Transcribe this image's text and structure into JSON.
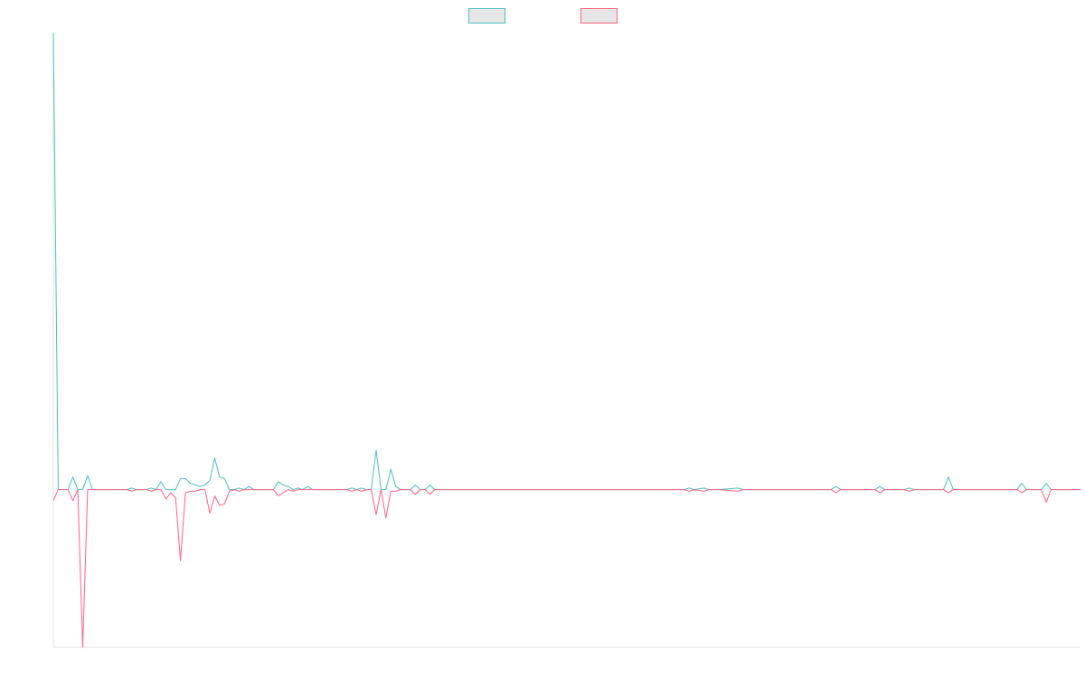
{
  "chart_data": {
    "type": "line",
    "title": "",
    "xlabel": "",
    "ylabel": "",
    "grid": false,
    "legend": "top-center",
    "ylim": [
      -100,
      290
    ],
    "series": [
      {
        "color": "#4bc0c0",
        "fill": "#e6e6e6",
        "points": [
          [
            0,
            290
          ],
          [
            1,
            0
          ],
          [
            2,
            0
          ],
          [
            3,
            0
          ],
          [
            4,
            8
          ],
          [
            5,
            0
          ],
          [
            6,
            0
          ],
          [
            7,
            9
          ],
          [
            8,
            0
          ],
          [
            15,
            0
          ],
          [
            16,
            1
          ],
          [
            17,
            0
          ],
          [
            19,
            0
          ],
          [
            20,
            1
          ],
          [
            21,
            0
          ],
          [
            22,
            5
          ],
          [
            23,
            0
          ],
          [
            25,
            0
          ],
          [
            26,
            7
          ],
          [
            27,
            7
          ],
          [
            28,
            4
          ],
          [
            29,
            3
          ],
          [
            30,
            2
          ],
          [
            31,
            3
          ],
          [
            32,
            6
          ],
          [
            33,
            20
          ],
          [
            34,
            8
          ],
          [
            35,
            7
          ],
          [
            36,
            0
          ],
          [
            37,
            0
          ],
          [
            38,
            1
          ],
          [
            39,
            0
          ],
          [
            40,
            2
          ],
          [
            41,
            0
          ],
          [
            45,
            0
          ],
          [
            46,
            5
          ],
          [
            47,
            3
          ],
          [
            48,
            2
          ],
          [
            49,
            0
          ],
          [
            50,
            1
          ],
          [
            51,
            0
          ],
          [
            52,
            2
          ],
          [
            53,
            0
          ],
          [
            60,
            0
          ],
          [
            61,
            1
          ],
          [
            62,
            0
          ],
          [
            63,
            1
          ],
          [
            64,
            0
          ],
          [
            65,
            0
          ],
          [
            66,
            25
          ],
          [
            67,
            0
          ],
          [
            68,
            0
          ],
          [
            69,
            13
          ],
          [
            70,
            2
          ],
          [
            71,
            0
          ],
          [
            73,
            0
          ],
          [
            74,
            3
          ],
          [
            75,
            0
          ],
          [
            76,
            0
          ],
          [
            77,
            3
          ],
          [
            78,
            0
          ],
          [
            90,
            0
          ],
          [
            110,
            0
          ],
          [
            127,
            0
          ],
          [
            129,
            0
          ],
          [
            130,
            1
          ],
          [
            131,
            0
          ],
          [
            133,
            1
          ],
          [
            134,
            0
          ],
          [
            136,
            0
          ],
          [
            140,
            1
          ],
          [
            141,
            0
          ],
          [
            148,
            0
          ],
          [
            155,
            0
          ],
          [
            159,
            0
          ],
          [
            160,
            2
          ],
          [
            161,
            0
          ],
          [
            168,
            0
          ],
          [
            169,
            2
          ],
          [
            170,
            0
          ],
          [
            174,
            0
          ],
          [
            175,
            1
          ],
          [
            176,
            0
          ],
          [
            182,
            0
          ],
          [
            183,
            8
          ],
          [
            184,
            0
          ],
          [
            197,
            0
          ],
          [
            198,
            4
          ],
          [
            199,
            0
          ],
          [
            202,
            0
          ],
          [
            203,
            4
          ],
          [
            204,
            0
          ],
          [
            210,
            0
          ]
        ]
      },
      {
        "color": "#ff6384",
        "fill": "#e6e6e6",
        "points": [
          [
            0,
            -7
          ],
          [
            1,
            0
          ],
          [
            2,
            0
          ],
          [
            3,
            0
          ],
          [
            4,
            -7
          ],
          [
            5,
            0
          ],
          [
            6,
            -100
          ],
          [
            7,
            0
          ],
          [
            8,
            0
          ],
          [
            15,
            0
          ],
          [
            16,
            -1
          ],
          [
            17,
            0
          ],
          [
            19,
            0
          ],
          [
            20,
            -1
          ],
          [
            21,
            0
          ],
          [
            22,
            0
          ],
          [
            23,
            -6
          ],
          [
            24,
            -2
          ],
          [
            25,
            -5
          ],
          [
            26,
            -45
          ],
          [
            27,
            -2
          ],
          [
            28,
            -1
          ],
          [
            29,
            -1
          ],
          [
            30,
            0
          ],
          [
            31,
            0
          ],
          [
            32,
            -15
          ],
          [
            33,
            -4
          ],
          [
            34,
            -10
          ],
          [
            35,
            -9
          ],
          [
            36,
            -1
          ],
          [
            37,
            0
          ],
          [
            38,
            -1
          ],
          [
            39,
            0
          ],
          [
            40,
            0
          ],
          [
            41,
            0
          ],
          [
            45,
            0
          ],
          [
            46,
            -4
          ],
          [
            47,
            -2
          ],
          [
            48,
            0
          ],
          [
            49,
            -1
          ],
          [
            50,
            0
          ],
          [
            52,
            0
          ],
          [
            53,
            0
          ],
          [
            60,
            0
          ],
          [
            61,
            -1
          ],
          [
            62,
            0
          ],
          [
            63,
            -1
          ],
          [
            64,
            0
          ],
          [
            65,
            0
          ],
          [
            66,
            -16
          ],
          [
            67,
            0
          ],
          [
            68,
            -18
          ],
          [
            69,
            -1
          ],
          [
            70,
            -1
          ],
          [
            71,
            0
          ],
          [
            73,
            0
          ],
          [
            74,
            -3
          ],
          [
            75,
            0
          ],
          [
            76,
            0
          ],
          [
            77,
            -3
          ],
          [
            78,
            0
          ],
          [
            90,
            0
          ],
          [
            110,
            0
          ],
          [
            127,
            0
          ],
          [
            129,
            0
          ],
          [
            130,
            -1
          ],
          [
            131,
            0
          ],
          [
            133,
            -1
          ],
          [
            134,
            0
          ],
          [
            136,
            0
          ],
          [
            140,
            -1
          ],
          [
            141,
            0
          ],
          [
            148,
            0
          ],
          [
            155,
            0
          ],
          [
            159,
            0
          ],
          [
            160,
            -2
          ],
          [
            161,
            0
          ],
          [
            168,
            0
          ],
          [
            169,
            -2
          ],
          [
            170,
            0
          ],
          [
            174,
            0
          ],
          [
            175,
            -1
          ],
          [
            176,
            0
          ],
          [
            182,
            0
          ],
          [
            183,
            -2
          ],
          [
            184,
            0
          ],
          [
            197,
            0
          ],
          [
            198,
            -2
          ],
          [
            199,
            0
          ],
          [
            202,
            0
          ],
          [
            203,
            -8
          ],
          [
            204,
            0
          ],
          [
            210,
            0
          ]
        ]
      }
    ]
  }
}
